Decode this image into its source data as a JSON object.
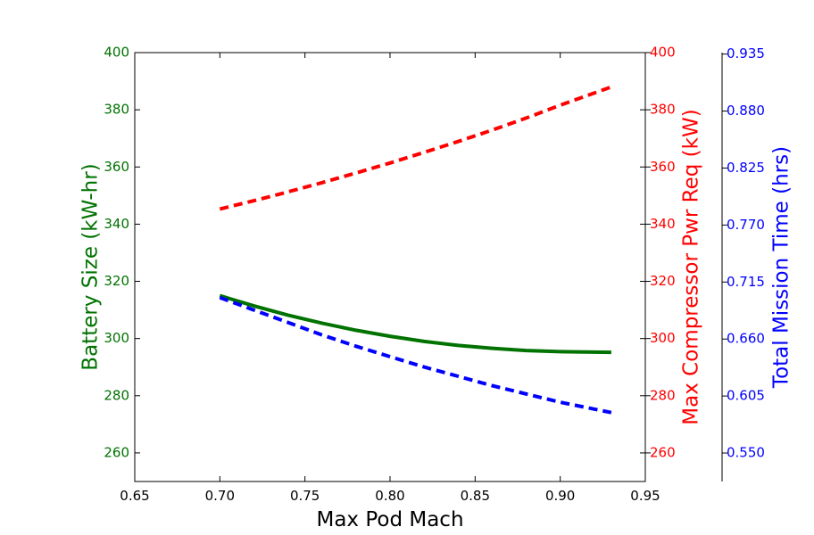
{
  "chart_data": {
    "type": "line",
    "xlabel": "Max Pod Mach",
    "xlim": [
      0.65,
      0.95
    ],
    "x_ticks": [
      "0.65",
      "0.70",
      "0.75",
      "0.80",
      "0.85",
      "0.90",
      "0.95"
    ],
    "grid": false,
    "axes": [
      {
        "id": "left",
        "label": "Battery Size (kW-hr)",
        "color": "#007200",
        "ylim": [
          250,
          400
        ],
        "ticks": [
          "260",
          "280",
          "300",
          "320",
          "340",
          "360",
          "380",
          "400"
        ]
      },
      {
        "id": "right1",
        "label": "Max Compressor Pwr Req (kW)",
        "color": "#ff0000",
        "ylim": [
          250,
          400
        ],
        "ticks": [
          "260",
          "280",
          "300",
          "320",
          "340",
          "360",
          "380",
          "400"
        ]
      },
      {
        "id": "right2",
        "label": "Total Mission Time (hrs)",
        "color": "#0000ff",
        "ylim": [
          0.5225,
          0.9364
        ],
        "ticks": [
          "0.550",
          "0.605",
          "0.660",
          "0.715",
          "0.770",
          "0.825",
          "0.880",
          "0.935"
        ]
      }
    ],
    "series": [
      {
        "axis": "left",
        "color": "#007200",
        "style": "solid",
        "x": [
          0.7,
          0.72,
          0.74,
          0.76,
          0.78,
          0.8,
          0.82,
          0.84,
          0.86,
          0.88,
          0.9,
          0.93
        ],
        "y": [
          315.0,
          311.4,
          308.2,
          305.4,
          302.9,
          300.8,
          299.0,
          297.6,
          296.6,
          295.8,
          295.4,
          295.2
        ]
      },
      {
        "axis": "right1",
        "color": "#ff0000",
        "style": "dashed",
        "x": [
          0.7,
          0.72,
          0.74,
          0.76,
          0.78,
          0.8,
          0.82,
          0.84,
          0.86,
          0.88,
          0.9,
          0.93
        ],
        "y": [
          345.3,
          348.2,
          351.3,
          354.5,
          357.9,
          361.4,
          365.1,
          368.9,
          372.9,
          377.1,
          381.6,
          388.0
        ]
      },
      {
        "axis": "right2",
        "color": "#0000ff",
        "style": "dashed",
        "x": [
          0.7,
          0.72,
          0.74,
          0.76,
          0.78,
          0.8,
          0.82,
          0.84,
          0.86,
          0.88,
          0.9,
          0.93
        ],
        "y": [
          0.7,
          0.688,
          0.676,
          0.664,
          0.653,
          0.643,
          0.633,
          0.624,
          0.615,
          0.607,
          0.599,
          0.589
        ]
      }
    ]
  }
}
